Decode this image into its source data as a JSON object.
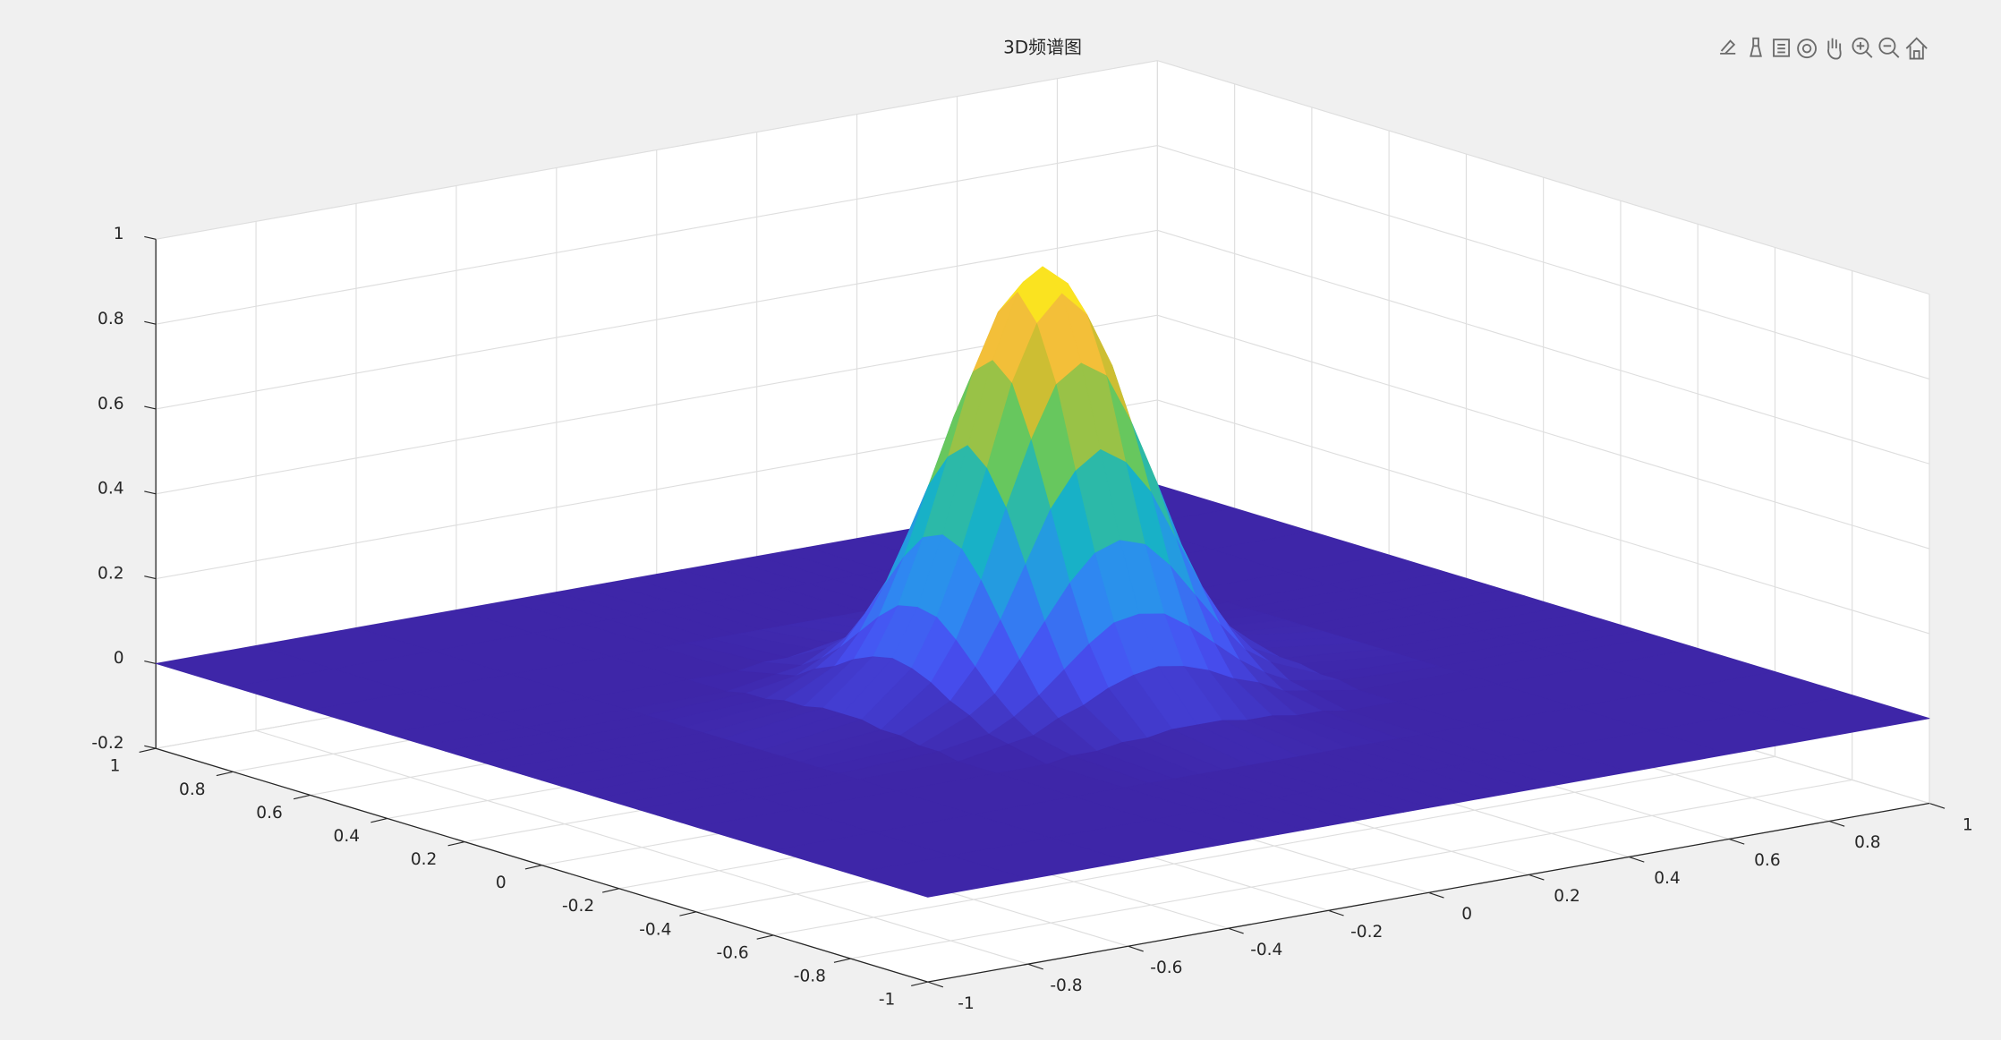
{
  "chart_data": {
    "type": "surface",
    "title": "3D频谱图",
    "x": [
      -1,
      -0.8,
      -0.6,
      -0.4,
      -0.3,
      -0.25,
      -0.2,
      -0.15,
      -0.1,
      -0.05,
      0,
      0.05,
      0.1,
      0.15,
      0.2,
      0.25,
      0.3,
      0.4,
      0.6,
      0.8,
      1
    ],
    "y": [
      -1,
      -0.8,
      -0.6,
      -0.4,
      -0.3,
      -0.25,
      -0.2,
      -0.15,
      -0.1,
      -0.05,
      0,
      0.05,
      0.1,
      0.15,
      0.2,
      0.25,
      0.3,
      0.4,
      0.6,
      0.8,
      1
    ],
    "z": [
      [
        0,
        0,
        0,
        0,
        0,
        0,
        0,
        0,
        0,
        0,
        0,
        0,
        0,
        0,
        0,
        0,
        0,
        0,
        0,
        0,
        0
      ],
      [
        0,
        0,
        0,
        0,
        0,
        0,
        0,
        0,
        0,
        0,
        0,
        0,
        0,
        0,
        0,
        0,
        0,
        0,
        0,
        0,
        0
      ],
      [
        0,
        0,
        0,
        0,
        0,
        0,
        0,
        0,
        0,
        0,
        0,
        0,
        0,
        0,
        0,
        0,
        0,
        0,
        0,
        0,
        0
      ],
      [
        0,
        0,
        0,
        0,
        0,
        0.01,
        0.01,
        0.02,
        0.02,
        0.03,
        0.03,
        0.03,
        0.02,
        0.02,
        0.01,
        0.01,
        0,
        0,
        0,
        0,
        0
      ],
      [
        0,
        0,
        0,
        0,
        0.02,
        0.03,
        0.06,
        0.08,
        0.11,
        0.13,
        0.14,
        0.13,
        0.11,
        0.08,
        0.06,
        0.03,
        0.02,
        0,
        0,
        0,
        0
      ],
      [
        0,
        0,
        0,
        0.01,
        0.03,
        0.06,
        0.1,
        0.15,
        0.2,
        0.24,
        0.25,
        0.24,
        0.2,
        0.15,
        0.1,
        0.06,
        0.03,
        0.01,
        0,
        0,
        0
      ],
      [
        0,
        0,
        0,
        0.01,
        0.06,
        0.1,
        0.17,
        0.25,
        0.33,
        0.39,
        0.41,
        0.39,
        0.33,
        0.25,
        0.17,
        0.1,
        0.06,
        0.01,
        0,
        0,
        0
      ],
      [
        0,
        0,
        0,
        0.02,
        0.08,
        0.15,
        0.25,
        0.37,
        0.49,
        0.57,
        0.61,
        0.57,
        0.49,
        0.37,
        0.25,
        0.15,
        0.08,
        0.02,
        0,
        0,
        0
      ],
      [
        0,
        0,
        0,
        0.02,
        0.11,
        0.2,
        0.33,
        0.49,
        0.64,
        0.76,
        0.8,
        0.76,
        0.64,
        0.49,
        0.33,
        0.2,
        0.11,
        0.02,
        0,
        0,
        0
      ],
      [
        0,
        0,
        0,
        0.03,
        0.13,
        0.24,
        0.39,
        0.57,
        0.76,
        0.89,
        0.95,
        0.89,
        0.76,
        0.57,
        0.39,
        0.24,
        0.13,
        0.03,
        0,
        0,
        0
      ],
      [
        0,
        0,
        0,
        0.03,
        0.14,
        0.25,
        0.41,
        0.61,
        0.8,
        0.95,
        1,
        0.95,
        0.8,
        0.61,
        0.41,
        0.25,
        0.14,
        0.03,
        0,
        0,
        0
      ],
      [
        0,
        0,
        0,
        0.03,
        0.13,
        0.24,
        0.39,
        0.57,
        0.76,
        0.89,
        0.95,
        0.89,
        0.76,
        0.57,
        0.39,
        0.24,
        0.13,
        0.03,
        0,
        0,
        0
      ],
      [
        0,
        0,
        0,
        0.02,
        0.11,
        0.2,
        0.33,
        0.49,
        0.64,
        0.76,
        0.8,
        0.76,
        0.64,
        0.49,
        0.33,
        0.2,
        0.11,
        0.02,
        0,
        0,
        0
      ],
      [
        0,
        0,
        0,
        0.02,
        0.08,
        0.15,
        0.25,
        0.37,
        0.49,
        0.57,
        0.61,
        0.57,
        0.49,
        0.37,
        0.25,
        0.15,
        0.08,
        0.02,
        0,
        0,
        0
      ],
      [
        0,
        0,
        0,
        0.01,
        0.06,
        0.1,
        0.17,
        0.25,
        0.33,
        0.39,
        0.41,
        0.39,
        0.33,
        0.25,
        0.17,
        0.1,
        0.06,
        0.01,
        0,
        0,
        0
      ],
      [
        0,
        0,
        0,
        0.01,
        0.03,
        0.06,
        0.1,
        0.15,
        0.2,
        0.24,
        0.25,
        0.24,
        0.2,
        0.15,
        0.1,
        0.06,
        0.03,
        0.01,
        0,
        0,
        0
      ],
      [
        0,
        0,
        0,
        0,
        0.02,
        0.03,
        0.06,
        0.08,
        0.11,
        0.13,
        0.14,
        0.13,
        0.11,
        0.08,
        0.06,
        0.03,
        0.02,
        0,
        0,
        0,
        0
      ],
      [
        0,
        0,
        0,
        0,
        0,
        0.01,
        0.01,
        0.02,
        0.02,
        0.03,
        0.03,
        0.03,
        0.02,
        0.02,
        0.01,
        0.01,
        0,
        0,
        0,
        0,
        0
      ],
      [
        0,
        0,
        0,
        0,
        0,
        0,
        0,
        0,
        0,
        0,
        0,
        0,
        0,
        0,
        0,
        0,
        0,
        0,
        0,
        0,
        0
      ],
      [
        0,
        0,
        0,
        0,
        0,
        0,
        0,
        0,
        0,
        0,
        0,
        0,
        0,
        0,
        0,
        0,
        0,
        0,
        0,
        0,
        0
      ],
      [
        0,
        0,
        0,
        0,
        0,
        0,
        0,
        0,
        0,
        0,
        0,
        0,
        0,
        0,
        0,
        0,
        0,
        0,
        0,
        0,
        0
      ]
    ],
    "xlim": [
      -1,
      1
    ],
    "ylim": [
      -1,
      1
    ],
    "zlim": [
      -0.2,
      1
    ],
    "xticks": [
      -1,
      -0.8,
      -0.6,
      -0.4,
      -0.2,
      0,
      0.2,
      0.4,
      0.6,
      0.8,
      1
    ],
    "yticks": [
      -1,
      -0.8,
      -0.6,
      -0.4,
      -0.2,
      0,
      0.2,
      0.4,
      0.6,
      0.8,
      1
    ],
    "zticks": [
      -0.2,
      0,
      0.2,
      0.4,
      0.6,
      0.8,
      1
    ],
    "colormap": "parula",
    "grid": true
  }
}
